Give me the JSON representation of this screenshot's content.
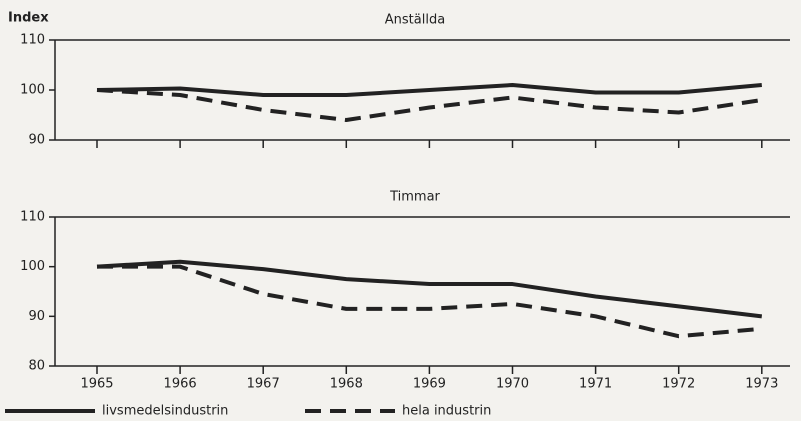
{
  "chart_data": [
    {
      "type": "line",
      "title": "Anställda",
      "ylabel": "Index",
      "categories": [
        "1965",
        "1966",
        "1967",
        "1968",
        "1969",
        "1970",
        "1971",
        "1972",
        "1973"
      ],
      "show_xlabels": false,
      "ylim": [
        90,
        110
      ],
      "yticks": [
        90,
        100,
        110
      ],
      "series": [
        {
          "name": "livsmedelsindustrin",
          "color": "#222222",
          "dash": false,
          "values": [
            100,
            100.3,
            99,
            99,
            100,
            101,
            99.5,
            99.5,
            101
          ]
        },
        {
          "name": "hela industrin",
          "color": "#222222",
          "dash": true,
          "values": [
            100,
            99,
            96,
            94,
            96.5,
            98.5,
            96.5,
            95.5,
            98
          ]
        }
      ]
    },
    {
      "type": "line",
      "title": "Timmar",
      "categories": [
        "1965",
        "1966",
        "1967",
        "1968",
        "1969",
        "1970",
        "1971",
        "1972",
        "1973"
      ],
      "show_xlabels": true,
      "ylim": [
        80,
        110
      ],
      "yticks": [
        80,
        90,
        100,
        110
      ],
      "series": [
        {
          "name": "livsmedelsindustrin",
          "color": "#222222",
          "dash": false,
          "values": [
            100,
            101,
            99.5,
            97.5,
            96.5,
            96.5,
            94,
            92,
            90
          ]
        },
        {
          "name": "hela industrin",
          "color": "#222222",
          "dash": true,
          "values": [
            100,
            100,
            94.5,
            91.5,
            91.5,
            92.5,
            90,
            86,
            87.5
          ]
        }
      ]
    }
  ]
}
